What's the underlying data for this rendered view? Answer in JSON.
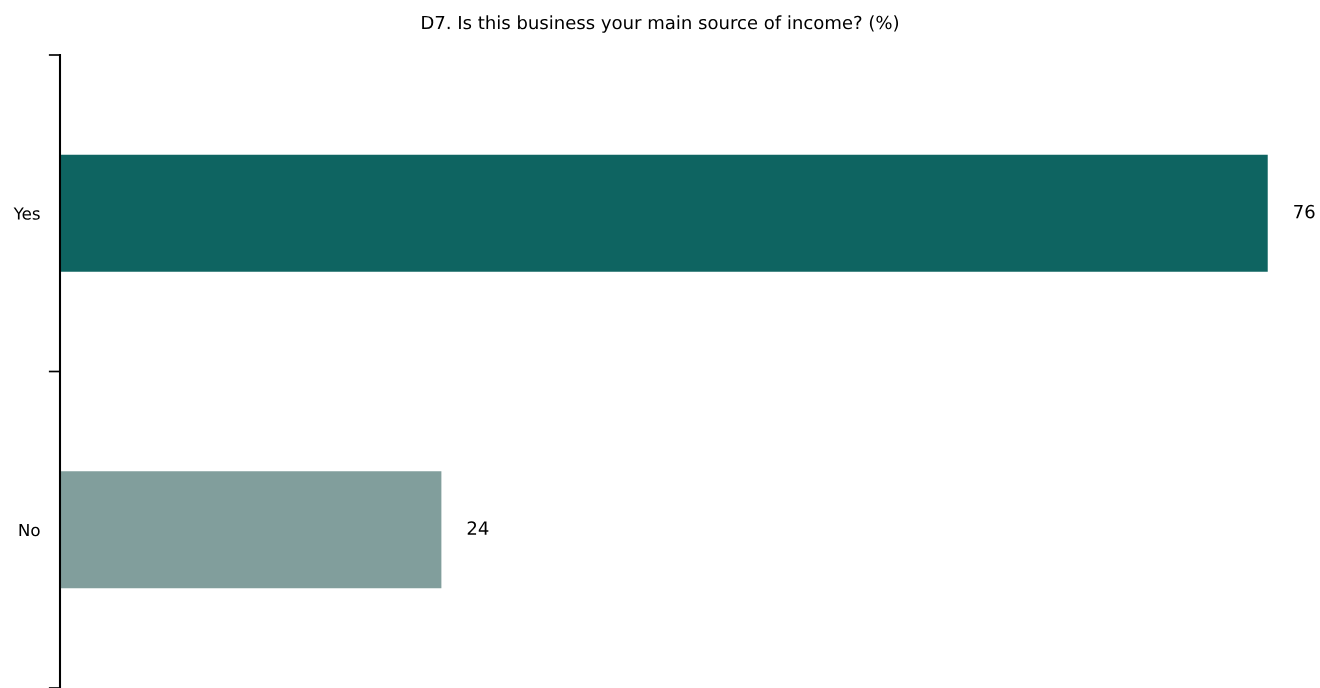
{
  "chart_data": {
    "type": "bar",
    "orientation": "horizontal",
    "title": "D7. Is this business your main source of income? (%)",
    "categories": [
      "Yes",
      "No"
    ],
    "values": [
      76,
      24
    ],
    "colors": [
      "#0e6461",
      "#819e9c"
    ],
    "data_labels": true,
    "grid": false
  }
}
